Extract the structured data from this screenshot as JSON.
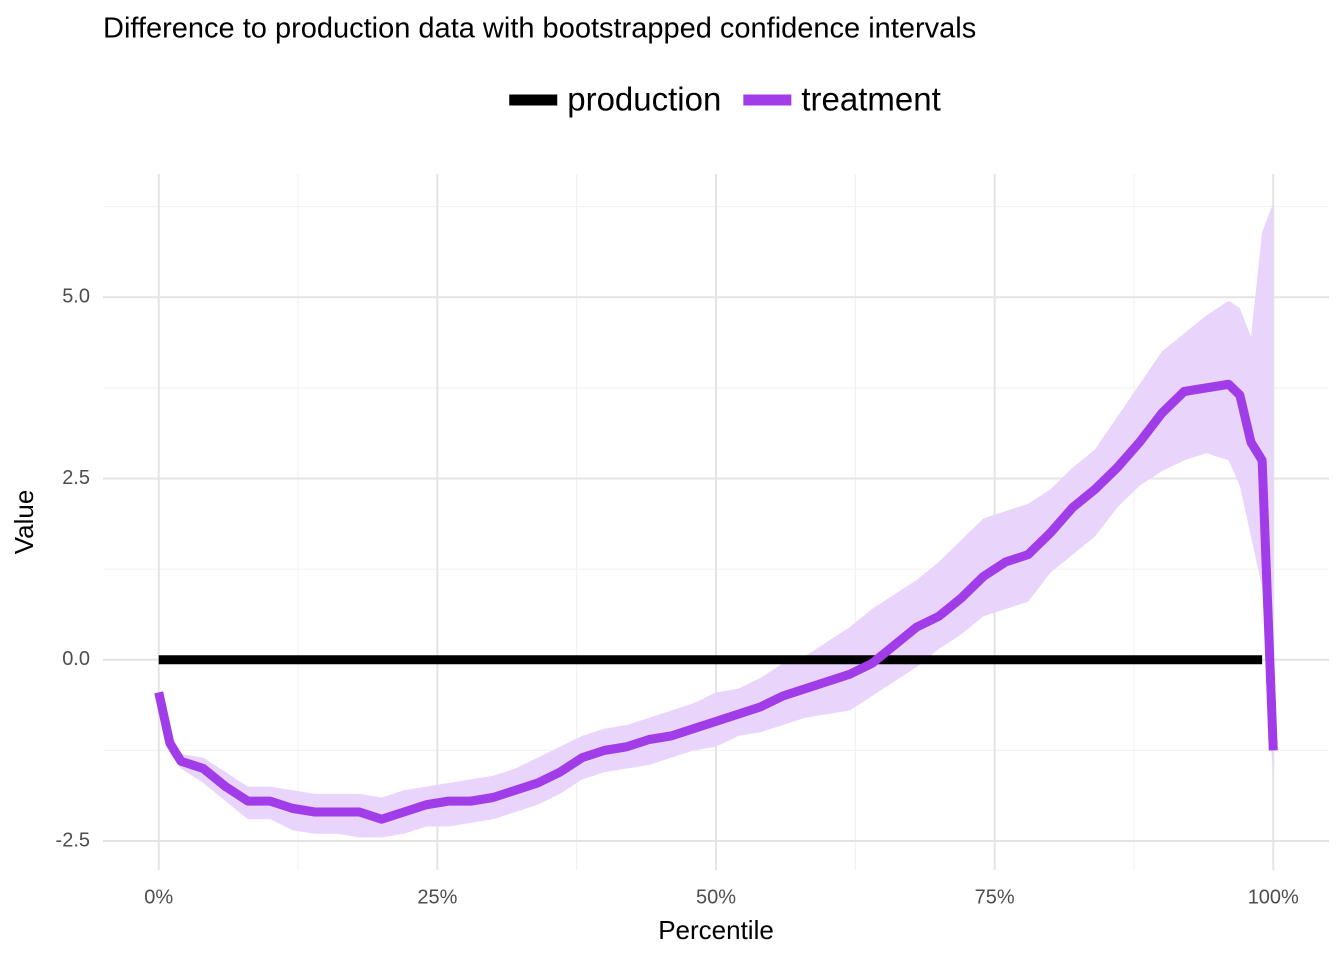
{
  "chart_data": {
    "type": "line",
    "title": "Difference to production data with bootstrapped confidence intervals",
    "x_label": "Percentile",
    "y_label": "Value",
    "xlim": [
      -5,
      105
    ],
    "ylim": [
      -2.9,
      6.7
    ],
    "xticks": [
      {
        "value": 0,
        "label": "0%"
      },
      {
        "value": 25,
        "label": "25%"
      },
      {
        "value": 50,
        "label": "50%"
      },
      {
        "value": 75,
        "label": "75%"
      },
      {
        "value": 100,
        "label": "100%"
      }
    ],
    "yticks": [
      -2.5,
      {
        "value": 0,
        "label": "0.0"
      },
      2.5,
      {
        "value": 5,
        "label": "5.0"
      }
    ],
    "x_minor_ticks": [
      12.5,
      37.5,
      62.5,
      87.5
    ],
    "y_minor_ticks": [
      -1.25,
      1.25,
      3.75,
      6.25
    ],
    "grid": true,
    "legend": "top",
    "series": [
      {
        "name": "production",
        "color": "#000000",
        "x": [
          0,
          99
        ],
        "values": [
          0,
          0
        ]
      },
      {
        "name": "treatment",
        "color": "#a03ce8",
        "band_color": "#e9d4fb",
        "x": [
          0,
          1,
          2,
          4,
          6,
          8,
          10,
          12,
          14,
          16,
          18,
          20,
          22,
          24,
          26,
          28,
          30,
          32,
          34,
          36,
          38,
          40,
          42,
          44,
          46,
          48,
          50,
          52,
          54,
          56,
          58,
          60,
          62,
          64,
          66,
          68,
          70,
          72,
          74,
          76,
          78,
          80,
          82,
          84,
          86,
          88,
          90,
          92,
          94,
          96,
          97,
          98,
          99,
          100
        ],
        "values": [
          -0.45,
          -1.15,
          -1.4,
          -1.5,
          -1.75,
          -1.95,
          -1.95,
          -2.05,
          -2.1,
          -2.1,
          -2.1,
          -2.2,
          -2.1,
          -2.0,
          -1.95,
          -1.95,
          -1.9,
          -1.8,
          -1.7,
          -1.55,
          -1.35,
          -1.25,
          -1.2,
          -1.1,
          -1.05,
          -0.95,
          -0.85,
          -0.75,
          -0.65,
          -0.5,
          -0.4,
          -0.3,
          -0.2,
          -0.05,
          0.2,
          0.45,
          0.6,
          0.85,
          1.15,
          1.35,
          1.45,
          1.75,
          2.1,
          2.35,
          2.65,
          3.0,
          3.4,
          3.7,
          3.75,
          3.8,
          3.65,
          3.0,
          2.75,
          -1.25
        ],
        "lower": [
          -0.6,
          -1.3,
          -1.5,
          -1.7,
          -1.95,
          -2.2,
          -2.2,
          -2.35,
          -2.4,
          -2.4,
          -2.45,
          -2.45,
          -2.4,
          -2.3,
          -2.3,
          -2.25,
          -2.2,
          -2.1,
          -2.0,
          -1.85,
          -1.65,
          -1.55,
          -1.5,
          -1.45,
          -1.35,
          -1.25,
          -1.2,
          -1.05,
          -1.0,
          -0.9,
          -0.8,
          -0.75,
          -0.7,
          -0.5,
          -0.3,
          -0.1,
          0.15,
          0.35,
          0.6,
          0.7,
          0.8,
          1.2,
          1.45,
          1.7,
          2.1,
          2.4,
          2.6,
          2.75,
          2.85,
          2.75,
          2.4,
          1.7,
          1.0,
          -1.7
        ],
        "upper": [
          -0.4,
          -1.0,
          -1.3,
          -1.35,
          -1.55,
          -1.75,
          -1.75,
          -1.8,
          -1.85,
          -1.85,
          -1.85,
          -1.9,
          -1.8,
          -1.75,
          -1.7,
          -1.65,
          -1.6,
          -1.5,
          -1.35,
          -1.2,
          -1.05,
          -0.95,
          -0.9,
          -0.8,
          -0.7,
          -0.6,
          -0.45,
          -0.4,
          -0.25,
          -0.05,
          0.05,
          0.25,
          0.45,
          0.7,
          0.9,
          1.1,
          1.35,
          1.65,
          1.95,
          2.05,
          2.15,
          2.35,
          2.65,
          2.9,
          3.35,
          3.8,
          4.25,
          4.5,
          4.75,
          4.95,
          4.85,
          4.45,
          5.9,
          6.3
        ]
      }
    ]
  }
}
